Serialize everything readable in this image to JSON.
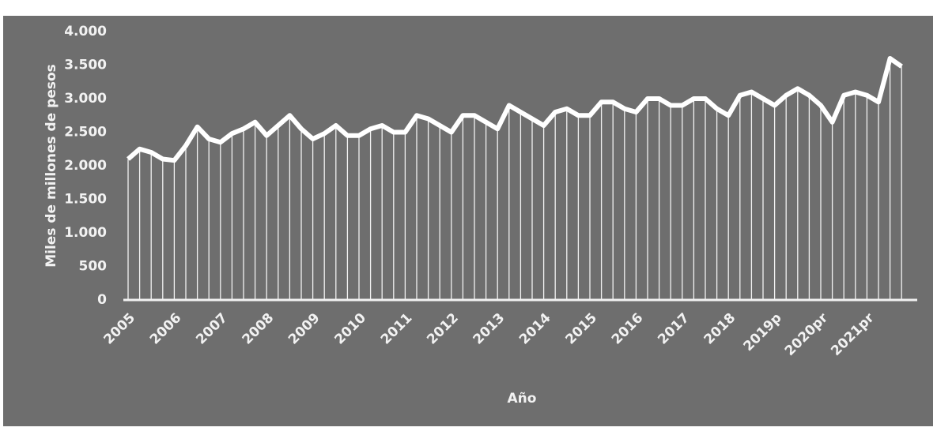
{
  "chart_data": {
    "type": "line",
    "x_label": "Año",
    "y_label": "Miles de millones de pesos",
    "categories": [
      "2005",
      null,
      null,
      null,
      "2006",
      null,
      null,
      null,
      "2007",
      null,
      null,
      null,
      "2008",
      null,
      null,
      null,
      "2009",
      null,
      null,
      null,
      "2010",
      null,
      null,
      null,
      "2011",
      null,
      null,
      null,
      "2012",
      null,
      null,
      null,
      "2013",
      null,
      null,
      null,
      "2014",
      null,
      null,
      null,
      "2015",
      null,
      null,
      null,
      "2016",
      null,
      null,
      null,
      "2017",
      null,
      null,
      null,
      "2018",
      null,
      null,
      null,
      "2019p",
      null,
      null,
      null,
      "2020pr",
      null,
      null,
      null,
      "2021pr",
      null,
      null,
      null
    ],
    "values": [
      2100,
      2250,
      2200,
      2100,
      2080,
      2300,
      2580,
      2400,
      2350,
      2480,
      2550,
      2650,
      2450,
      2600,
      2750,
      2550,
      2400,
      2480,
      2600,
      2450,
      2450,
      2550,
      2600,
      2500,
      2500,
      2750,
      2700,
      2600,
      2500,
      2750,
      2750,
      2650,
      2550,
      2900,
      2800,
      2700,
      2600,
      2800,
      2850,
      2750,
      2750,
      2950,
      2950,
      2850,
      2800,
      3000,
      3000,
      2900,
      2900,
      3000,
      3000,
      2850,
      2750,
      3050,
      3100,
      3000,
      2900,
      3050,
      3150,
      3050,
      2900,
      2650,
      3050,
      3100,
      3050,
      2950,
      3600,
      3480
    ],
    "color": "#ffffff",
    "drop_lines": true,
    "ylim": [
      0,
      4000
    ],
    "yticks": [
      0,
      500,
      {
        "value": 1000,
        "label": "1.000"
      },
      {
        "value": 1500,
        "label": "1.500"
      },
      {
        "value": 2000,
        "label": "2.000"
      },
      {
        "value": 2500,
        "label": "2.500"
      },
      {
        "value": 3000,
        "label": "3.000"
      },
      {
        "value": 3500,
        "label": "3.500"
      },
      {
        "value": 4000,
        "label": "4.000"
      }
    ]
  }
}
